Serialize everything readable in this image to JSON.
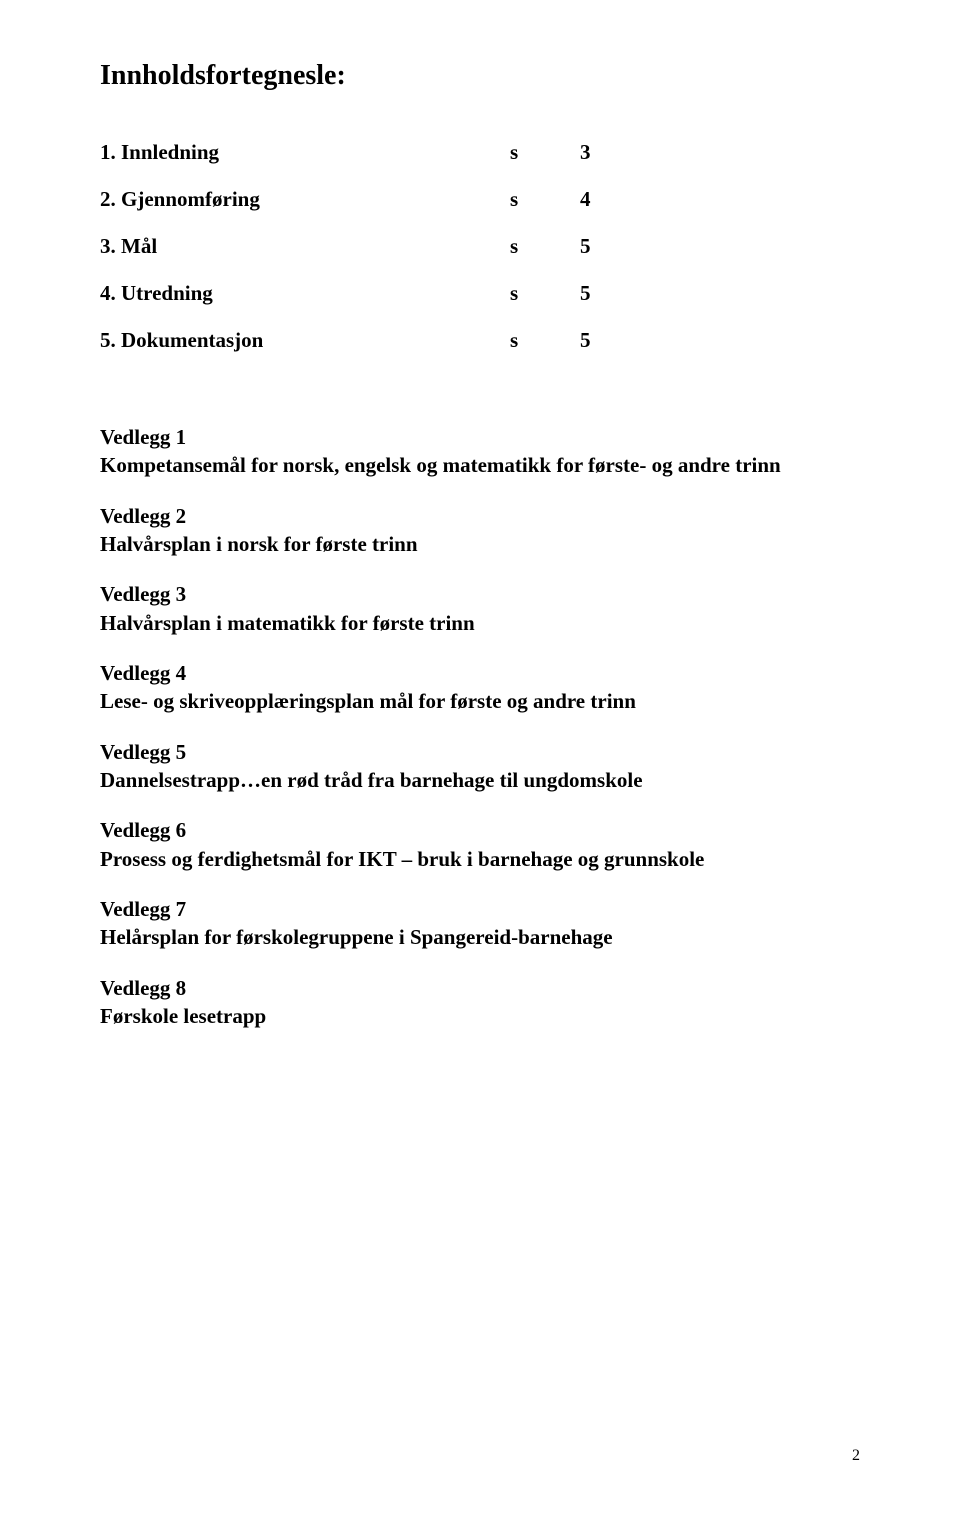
{
  "heading": "Innholdsfortegnesle:",
  "toc": [
    {
      "label": "1. Innledning",
      "s": "s",
      "page": "3"
    },
    {
      "label": "2. Gjennomføring",
      "s": "s",
      "page": "4"
    },
    {
      "label": "3. Mål",
      "s": "s",
      "page": "5"
    },
    {
      "label": "4. Utredning",
      "s": "s",
      "page": "5"
    },
    {
      "label": "5. Dokumentasjon",
      "s": "s",
      "page": "5"
    }
  ],
  "attachments": [
    {
      "title": "Vedlegg 1",
      "desc": "Kompetansemål for norsk, engelsk og matematikk for første- og andre trinn"
    },
    {
      "title": "Vedlegg 2",
      "desc": "Halvårsplan i norsk for første trinn"
    },
    {
      "title": "Vedlegg 3",
      "desc": "Halvårsplan i matematikk for første trinn"
    },
    {
      "title": "Vedlegg 4",
      "desc": "Lese- og skriveopplæringsplan mål for første og andre trinn"
    },
    {
      "title": "Vedlegg 5",
      "desc": "Dannelsestrapp…en rød tråd fra barnehage til ungdomskole"
    },
    {
      "title": "Vedlegg 6",
      "desc": "Prosess og ferdighetsmål for IKT – bruk i barnehage og grunnskole"
    },
    {
      "title": "Vedlegg 7",
      "desc": "Helårsplan for førskolegruppene i Spangereid-barnehage"
    },
    {
      "title": "Vedlegg 8",
      "desc": "Førskole lesetrapp"
    }
  ],
  "page_number": "2"
}
